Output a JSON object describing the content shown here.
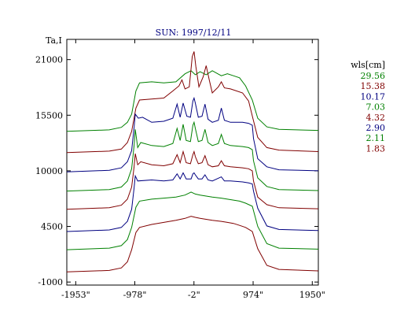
{
  "chart_data": {
    "type": "line",
    "title": "SUN: 1997/12/11",
    "ylabel": "Ta,I",
    "xlabel": "",
    "xlim": [
      -2100,
      2050
    ],
    "ylim": [
      -1300,
      23000
    ],
    "x_ticks": [
      {
        "value": -1953,
        "label": "-1953\""
      },
      {
        "value": -978,
        "label": "-978\""
      },
      {
        "value": -2,
        "label": "-2\""
      },
      {
        "value": 974,
        "label": "974\""
      },
      {
        "value": 1950,
        "label": "1950\""
      }
    ],
    "y_ticks": [
      {
        "value": 21000,
        "label": "21000"
      },
      {
        "value": 15500,
        "label": "15500"
      },
      {
        "value": 10000,
        "label": "10000"
      },
      {
        "value": 4500,
        "label": "4500"
      },
      {
        "value": -1000,
        "label": "-1000"
      }
    ],
    "grid": false,
    "legend": {
      "title": "wls[cm]",
      "placement": "right",
      "entries": [
        {
          "label": "29.56",
          "color": "#008000"
        },
        {
          "label": "15.38",
          "color": "#800000"
        },
        {
          "label": "10.17",
          "color": "#000080"
        },
        {
          "label": "7.03",
          "color": "#008000"
        },
        {
          "label": "4.32",
          "color": "#800000"
        },
        {
          "label": "2.90",
          "color": "#000080"
        },
        {
          "label": "2.11",
          "color": "#008000"
        },
        {
          "label": "1.83",
          "color": "#800000"
        }
      ]
    },
    "series": [
      {
        "color": "#008000",
        "x": [
          -2100,
          -1400,
          -1200,
          -1100,
          -1030,
          -960,
          -900,
          -700,
          -500,
          -300,
          -150,
          -50,
          20,
          100,
          200,
          300,
          450,
          550,
          650,
          750,
          850,
          960,
          1050,
          1200,
          1400,
          2050
        ],
        "y": [
          13900,
          14050,
          14300,
          14800,
          15600,
          17900,
          18700,
          18800,
          18700,
          18800,
          19600,
          19900,
          19500,
          19800,
          19500,
          19900,
          19400,
          19600,
          19400,
          19200,
          18400,
          17000,
          15200,
          14350,
          14100,
          14000
        ]
      },
      {
        "color": "#800000",
        "x": [
          -2100,
          -1400,
          -1200,
          -1100,
          -1030,
          -960,
          -900,
          -700,
          -500,
          -350,
          -250,
          -200,
          -150,
          -80,
          -30,
          0,
          30,
          80,
          150,
          200,
          250,
          300,
          400,
          450,
          500,
          600,
          800,
          900,
          970,
          1050,
          1200,
          1400,
          2050
        ],
        "y": [
          11800,
          11950,
          12150,
          12800,
          13900,
          16200,
          17000,
          17100,
          17200,
          17900,
          18400,
          19000,
          18100,
          18300,
          21300,
          21800,
          20300,
          18300,
          19300,
          20400,
          19000,
          17700,
          18300,
          18800,
          18200,
          18100,
          17700,
          16900,
          15200,
          13300,
          12300,
          12050,
          11900
        ]
      },
      {
        "color": "#000080",
        "x": [
          -2100,
          -1400,
          -1200,
          -1100,
          -1030,
          -990,
          -970,
          -920,
          -850,
          -700,
          -500,
          -350,
          -280,
          -230,
          -180,
          -120,
          -60,
          -20,
          0,
          20,
          70,
          130,
          180,
          230,
          300,
          400,
          450,
          500,
          600,
          800,
          900,
          960,
          980,
          1050,
          1200,
          1400,
          2050
        ],
        "y": [
          9900,
          10050,
          10300,
          10900,
          12000,
          14300,
          15600,
          15200,
          15300,
          14800,
          14900,
          15200,
          16600,
          15300,
          16700,
          15400,
          15300,
          16900,
          17200,
          16700,
          15300,
          15400,
          16600,
          15100,
          14800,
          15000,
          16200,
          15000,
          14800,
          14800,
          14700,
          14500,
          13200,
          11200,
          10400,
          10100,
          10000
        ]
      },
      {
        "color": "#008000",
        "x": [
          -2100,
          -1400,
          -1200,
          -1100,
          -1030,
          -990,
          -970,
          -930,
          -880,
          -700,
          -500,
          -350,
          -280,
          -230,
          -180,
          -130,
          -60,
          -20,
          0,
          20,
          70,
          130,
          180,
          230,
          300,
          400,
          450,
          500,
          600,
          800,
          900,
          960,
          980,
          1050,
          1200,
          1400,
          2050
        ],
        "y": [
          8000,
          8150,
          8400,
          9000,
          10200,
          12500,
          14100,
          12300,
          12800,
          12500,
          12400,
          12700,
          14200,
          13000,
          14600,
          13000,
          12900,
          14500,
          14800,
          14200,
          12900,
          13000,
          14100,
          12800,
          12500,
          12700,
          13600,
          12700,
          12500,
          12400,
          12300,
          12100,
          11000,
          9300,
          8450,
          8150,
          8050
        ]
      },
      {
        "color": "#800000",
        "x": [
          -2100,
          -1400,
          -1200,
          -1100,
          -1030,
          -990,
          -970,
          -930,
          -880,
          -700,
          -500,
          -350,
          -280,
          -230,
          -180,
          -130,
          -60,
          -20,
          0,
          20,
          70,
          130,
          180,
          230,
          300,
          400,
          450,
          500,
          600,
          800,
          900,
          960,
          980,
          1050,
          1200,
          1400,
          2050
        ],
        "y": [
          6200,
          6350,
          6600,
          7200,
          8400,
          10400,
          11700,
          10600,
          10900,
          10600,
          10500,
          10700,
          11600,
          10800,
          11900,
          10800,
          10700,
          11600,
          11900,
          11400,
          10700,
          10800,
          11500,
          10600,
          10400,
          10500,
          11000,
          10500,
          10400,
          10300,
          10200,
          10000,
          9000,
          7400,
          6650,
          6350,
          6250
        ]
      },
      {
        "color": "#000080",
        "x": [
          -2100,
          -1400,
          -1200,
          -1100,
          -1030,
          -990,
          -970,
          -930,
          -700,
          -500,
          -350,
          -280,
          -230,
          -180,
          -130,
          -50,
          -20,
          0,
          20,
          70,
          130,
          180,
          230,
          300,
          450,
          500,
          600,
          800,
          900,
          960,
          980,
          1050,
          1200,
          1400,
          2050
        ],
        "y": [
          4000,
          4150,
          4400,
          5000,
          6200,
          8300,
          9500,
          9000,
          9100,
          9000,
          9100,
          9700,
          9200,
          9800,
          9200,
          9200,
          9700,
          9800,
          9600,
          9200,
          9200,
          9600,
          9100,
          9000,
          9400,
          9000,
          9000,
          8900,
          8800,
          8700,
          8000,
          6300,
          4550,
          4200,
          4100
        ]
      },
      {
        "color": "#008000",
        "x": [
          -2100,
          -1400,
          -1200,
          -1100,
          -1030,
          -960,
          -900,
          -700,
          -500,
          -300,
          -150,
          -50,
          20,
          100,
          200,
          300,
          450,
          550,
          650,
          750,
          850,
          960,
          1050,
          1200,
          1400,
          2050
        ],
        "y": [
          2200,
          2350,
          2600,
          3200,
          4400,
          6400,
          7000,
          7200,
          7300,
          7400,
          7600,
          7900,
          7700,
          7600,
          7500,
          7400,
          7300,
          7200,
          7100,
          7000,
          6800,
          6500,
          4500,
          2800,
          2350,
          2250
        ]
      },
      {
        "color": "#800000",
        "x": [
          -2100,
          -1400,
          -1200,
          -1100,
          -1030,
          -960,
          -900,
          -700,
          -500,
          -300,
          -150,
          -50,
          20,
          100,
          200,
          300,
          450,
          550,
          650,
          750,
          850,
          960,
          1050,
          1200,
          1400,
          2050
        ],
        "y": [
          0,
          150,
          400,
          1000,
          2200,
          3900,
          4400,
          4700,
          4900,
          5100,
          5300,
          5500,
          5400,
          5300,
          5200,
          5100,
          5000,
          4900,
          4800,
          4600,
          4400,
          4000,
          2300,
          650,
          250,
          100
        ]
      }
    ]
  }
}
